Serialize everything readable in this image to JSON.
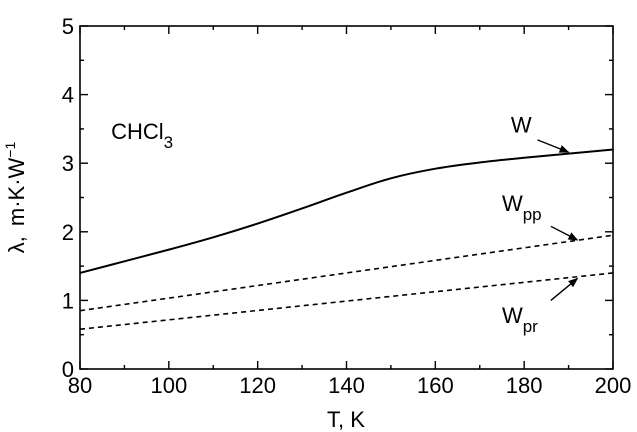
{
  "chart_data": {
    "type": "line",
    "title": "",
    "xlabel": "T, K",
    "ylabel": {
      "lambda": "λ",
      "comma": ",",
      "units": "m·K·W",
      "units_sup": "−1"
    },
    "xlim": [
      80,
      200
    ],
    "ylim": [
      0,
      5
    ],
    "x_ticks": [
      "80",
      "100",
      "120",
      "140",
      "160",
      "180",
      "200"
    ],
    "y_ticks": [
      "0",
      "1",
      "2",
      "3",
      "4",
      "5"
    ],
    "grid": false,
    "annotation": {
      "base": "CHCl",
      "sub": "3",
      "x": 87,
      "y": 3.35
    },
    "series": [
      {
        "name": "W",
        "name_sub": "",
        "style": "solid",
        "x": [
          80,
          90,
          100,
          110,
          120,
          130,
          140,
          150,
          160,
          170,
          180,
          190,
          200
        ],
        "y": [
          1.4,
          1.57,
          1.74,
          1.92,
          2.12,
          2.34,
          2.57,
          2.78,
          2.92,
          3.01,
          3.08,
          3.14,
          3.2
        ],
        "label_at": {
          "x": 177,
          "y": 3.45
        },
        "arrow_from": {
          "x": 183,
          "y": 3.34
        },
        "arrow_to": {
          "x": 190,
          "y": 3.16
        }
      },
      {
        "name": "W",
        "name_sub": "pp",
        "style": "dashed",
        "x": [
          80,
          200
        ],
        "y": [
          0.85,
          1.95
        ],
        "label_at": {
          "x": 175,
          "y": 2.3
        },
        "arrow_from": {
          "x": 186,
          "y": 2.08
        },
        "arrow_to": {
          "x": 192,
          "y": 1.88
        }
      },
      {
        "name": "W",
        "name_sub": "pr",
        "style": "dashed",
        "x": [
          80,
          200
        ],
        "y": [
          0.58,
          1.4
        ],
        "label_at": {
          "x": 175,
          "y": 0.67
        },
        "arrow_from": {
          "x": 186,
          "y": 1.0
        },
        "arrow_to": {
          "x": 192,
          "y": 1.32
        }
      }
    ]
  }
}
